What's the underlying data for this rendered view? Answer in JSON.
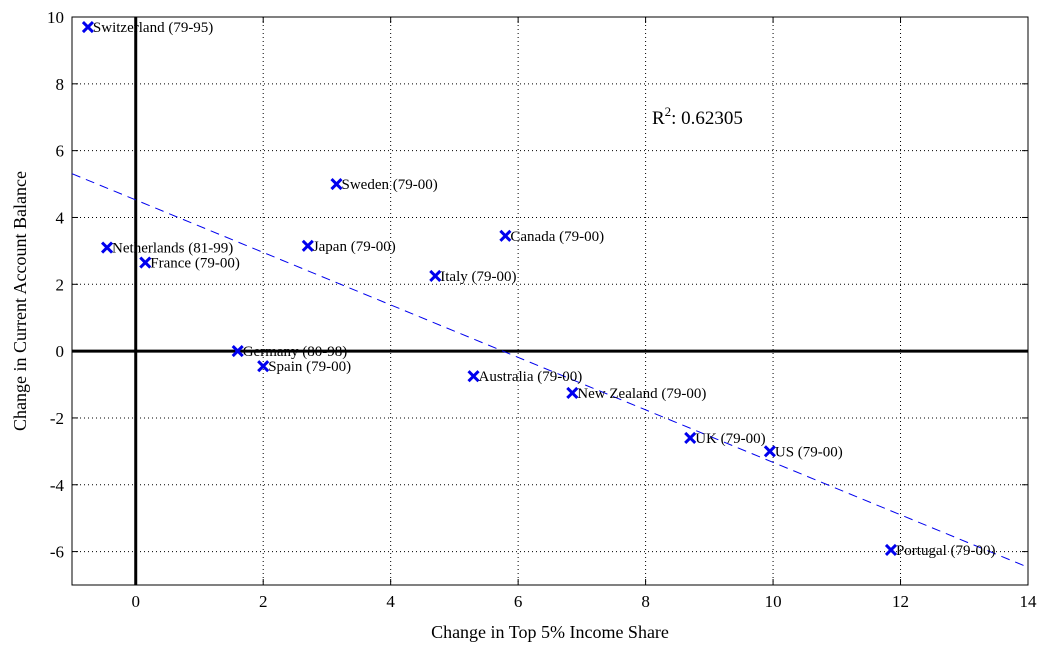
{
  "chart_data": {
    "type": "scatter",
    "title": "",
    "xlabel": "Change in Top 5% Income Share",
    "ylabel": "Change in Current Account Balance",
    "xlim": [
      -1,
      14
    ],
    "ylim": [
      -7,
      10
    ],
    "xticks": [
      0,
      2,
      4,
      6,
      8,
      10,
      12,
      14
    ],
    "yticks": [
      -6,
      -4,
      -2,
      0,
      2,
      4,
      6,
      8,
      10
    ],
    "grid": true,
    "marker_color": "#0000ee",
    "fit_line": {
      "x": [
        -1,
        14
      ],
      "y": [
        5.31,
        -6.47
      ],
      "style": "dashed",
      "color": "#0000ee"
    },
    "annotation": {
      "text_prefix": "R",
      "superscript": "2",
      "text_suffix": ": 0.62305",
      "x": 8.1,
      "y": 6.8
    },
    "points": [
      {
        "label": "Switzerland (79-95)",
        "x": -0.75,
        "y": 9.7
      },
      {
        "label": "Netherlands (81-99)",
        "x": -0.45,
        "y": 3.1
      },
      {
        "label": "France (79-00)",
        "x": 0.15,
        "y": 2.65
      },
      {
        "label": "Germany (80-98)",
        "x": 1.6,
        "y": 0.0
      },
      {
        "label": "Spain (79-00)",
        "x": 2.0,
        "y": -0.45
      },
      {
        "label": "Japan (79-00)",
        "x": 2.7,
        "y": 3.15
      },
      {
        "label": "Sweden (79-00)",
        "x": 3.15,
        "y": 5.0
      },
      {
        "label": "Italy (79-00)",
        "x": 4.7,
        "y": 2.25
      },
      {
        "label": "Australia (79-00)",
        "x": 5.3,
        "y": -0.75
      },
      {
        "label": "Canada (79-00)",
        "x": 5.8,
        "y": 3.45
      },
      {
        "label": "New Zealand (79-00)",
        "x": 6.85,
        "y": -1.25
      },
      {
        "label": "UK (79-00)",
        "x": 8.7,
        "y": -2.6
      },
      {
        "label": "US (79-00)",
        "x": 9.95,
        "y": -3.0
      },
      {
        "label": "Portugal (79-00)",
        "x": 11.85,
        "y": -5.95
      }
    ]
  }
}
